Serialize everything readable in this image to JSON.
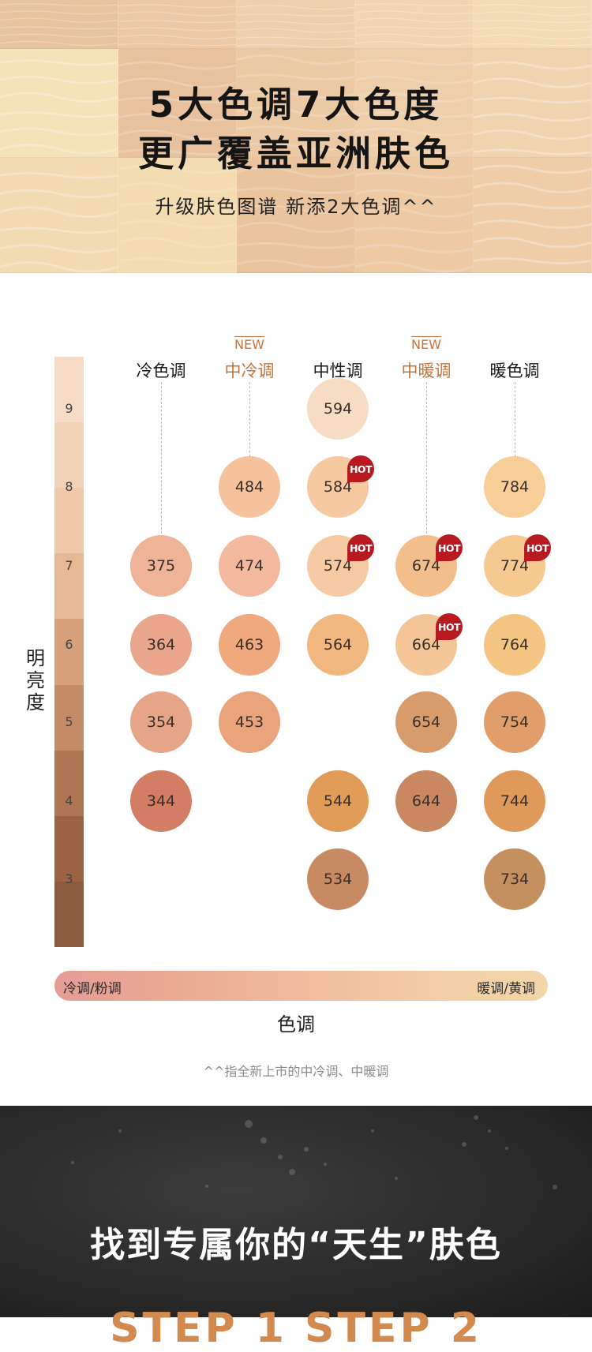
{
  "hero": {
    "title_line1": "5大色调7大色度",
    "title_line2": "更广覆盖亚洲肤色",
    "subtitle": "升级肤色图谱 新添2大色调^^"
  },
  "chart": {
    "columns": [
      {
        "label": "冷色调",
        "is_new": false,
        "new_tag": ""
      },
      {
        "label": "中冷调",
        "is_new": true,
        "new_tag": "NEW"
      },
      {
        "label": "中性调",
        "is_new": false,
        "new_tag": ""
      },
      {
        "label": "中暖调",
        "is_new": true,
        "new_tag": "NEW"
      },
      {
        "label": "暖色调",
        "is_new": false,
        "new_tag": ""
      }
    ],
    "brightness_levels": [
      "9",
      "8",
      "7",
      "6",
      "5",
      "4",
      "3"
    ],
    "brightness_axis_label": "明亮度",
    "tone_axis_label": "色调",
    "tone_left": "冷调/粉调",
    "tone_right": "暖调/黄调",
    "hot_label": "HOT",
    "swatches": [
      {
        "shade": "594",
        "column": 2,
        "level": "9",
        "color": "#f7dcc4",
        "hot": false
      },
      {
        "shade": "484",
        "column": 1,
        "level": "8",
        "color": "#f5c29b",
        "hot": false
      },
      {
        "shade": "584",
        "column": 2,
        "level": "8",
        "color": "#f6c9a0",
        "hot": true
      },
      {
        "shade": "784",
        "column": 4,
        "level": "8",
        "color": "#f7cd98",
        "hot": false
      },
      {
        "shade": "375",
        "column": 0,
        "level": "7",
        "color": "#efb497",
        "hot": false
      },
      {
        "shade": "474",
        "column": 1,
        "level": "7",
        "color": "#f3b99e",
        "hot": false
      },
      {
        "shade": "574",
        "column": 2,
        "level": "7",
        "color": "#f6cba3",
        "hot": true
      },
      {
        "shade": "674",
        "column": 3,
        "level": "7",
        "color": "#f2bf8c",
        "hot": true
      },
      {
        "shade": "774",
        "column": 4,
        "level": "7",
        "color": "#f6c990",
        "hot": true
      },
      {
        "shade": "364",
        "column": 0,
        "level": "6",
        "color": "#e9a68c",
        "hot": false
      },
      {
        "shade": "463",
        "column": 1,
        "level": "6",
        "color": "#f0a87d",
        "hot": false
      },
      {
        "shade": "564",
        "column": 2,
        "level": "6",
        "color": "#f2b67f",
        "hot": false
      },
      {
        "shade": "664",
        "column": 3,
        "level": "6",
        "color": "#f3c597",
        "hot": true
      },
      {
        "shade": "764",
        "column": 4,
        "level": "6",
        "color": "#f4c582",
        "hot": false
      },
      {
        "shade": "354",
        "column": 0,
        "level": "5",
        "color": "#e6a587",
        "hot": false
      },
      {
        "shade": "453",
        "column": 1,
        "level": "5",
        "color": "#e9a47c",
        "hot": false
      },
      {
        "shade": "654",
        "column": 3,
        "level": "5",
        "color": "#d89c6c",
        "hot": false
      },
      {
        "shade": "754",
        "column": 4,
        "level": "5",
        "color": "#e19d6a",
        "hot": false
      },
      {
        "shade": "344",
        "column": 0,
        "level": "4",
        "color": "#d37e64",
        "hot": false
      },
      {
        "shade": "544",
        "column": 2,
        "level": "4",
        "color": "#e19c58",
        "hot": false
      },
      {
        "shade": "644",
        "column": 3,
        "level": "4",
        "color": "#c98862",
        "hot": false
      },
      {
        "shade": "744",
        "column": 4,
        "level": "4",
        "color": "#df995a",
        "hot": false
      },
      {
        "shade": "534",
        "column": 2,
        "level": "3",
        "color": "#c88a63",
        "hot": false
      },
      {
        "shade": "734",
        "column": 4,
        "level": "3",
        "color": "#c49060",
        "hot": false
      }
    ],
    "footnote": "^^指全新上市的中冷调、中暖调",
    "colors": {
      "accent": "#c4743a",
      "hot_badge": "#b81a1f",
      "brightness_gradient": [
        "#f6dcc6",
        "#f3d3b8",
        "#f0caa8",
        "#e6b893",
        "#d6a07b",
        "#c48c66",
        "#b07552",
        "#9b6343",
        "#8c5a3c"
      ],
      "tone_gradient": [
        "#e59c95",
        "#ebaa93",
        "#f0bfa0",
        "#f3cfa6",
        "#f2d6a8"
      ]
    }
  },
  "banner": {
    "title": "找到专属你的“天生”肤色",
    "bottom_partial": "STEP 1   STEP 2"
  }
}
